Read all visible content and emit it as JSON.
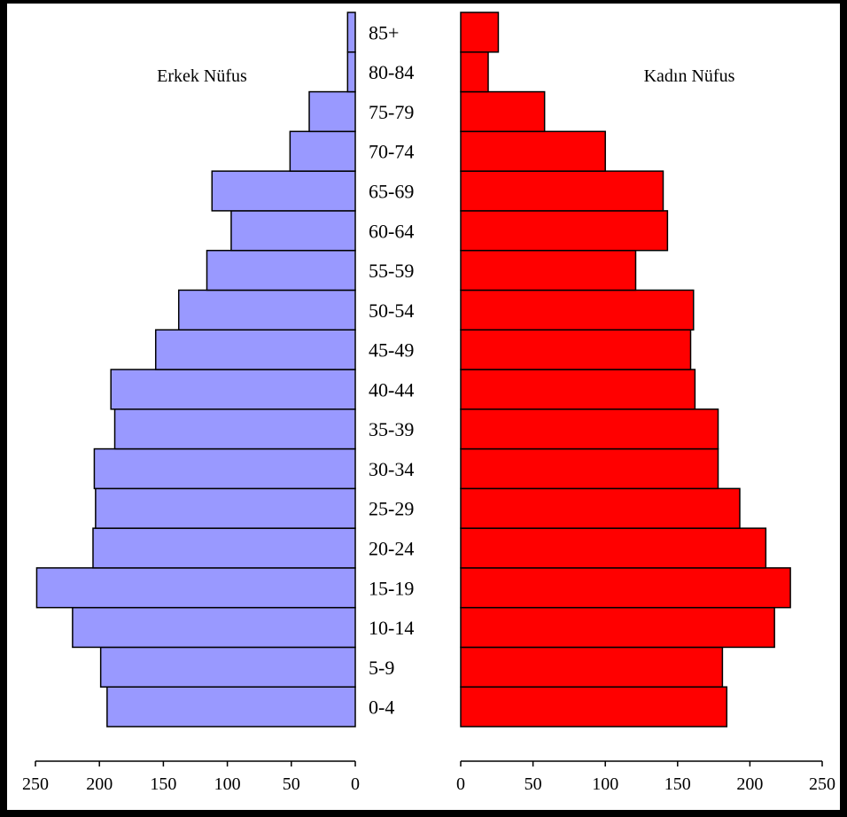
{
  "chart_data": {
    "type": "bar",
    "subtype": "population-pyramid",
    "categories": [
      "0-4",
      "5-9",
      "10-14",
      "15-19",
      "20-24",
      "25-29",
      "30-34",
      "35-39",
      "40-44",
      "45-49",
      "50-54",
      "55-59",
      "60-64",
      "65-69",
      "70-74",
      "75-79",
      "80-84",
      "85+"
    ],
    "series": [
      {
        "name": "Erkek Nüfus",
        "color": "#9999ff",
        "values": [
          194,
          199,
          221,
          249,
          205,
          203,
          204,
          188,
          191,
          156,
          138,
          116,
          97,
          112,
          51,
          36,
          6,
          6
        ]
      },
      {
        "name": "Kadın Nüfus",
        "color": "#ff0000",
        "values": [
          184,
          181,
          217,
          228,
          211,
          193,
          178,
          178,
          162,
          159,
          161,
          121,
          143,
          140,
          100,
          58,
          19,
          26
        ]
      }
    ],
    "left_axis": {
      "ticks": [
        "250",
        "200",
        "150",
        "100",
        "50",
        "0"
      ],
      "range": [
        0,
        250
      ],
      "reversed": true
    },
    "right_axis": {
      "ticks": [
        "0",
        "50",
        "100",
        "150",
        "200",
        "250"
      ],
      "range": [
        0,
        250
      ]
    },
    "grid": false
  }
}
